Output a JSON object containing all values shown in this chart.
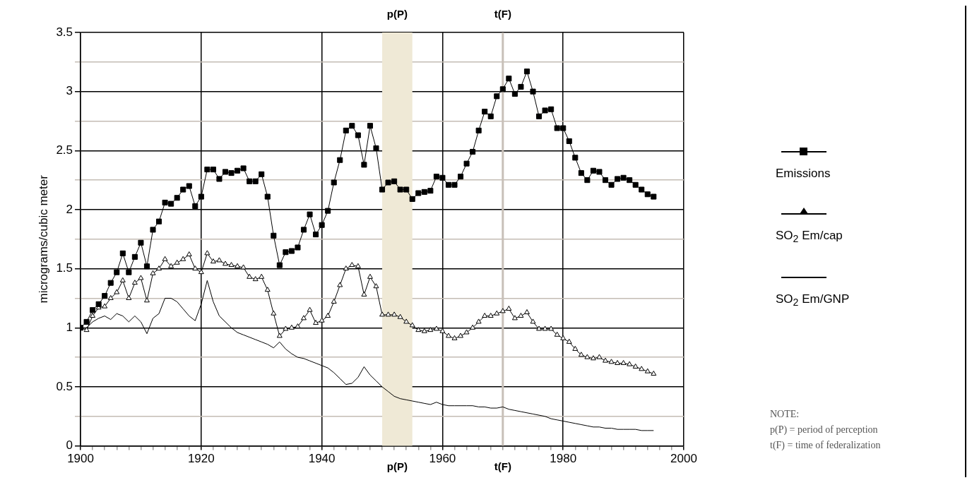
{
  "chart_data": {
    "type": "line",
    "ylabel": "micrograms/cubic meter",
    "x": [
      1900,
      1901,
      1902,
      1903,
      1904,
      1905,
      1906,
      1907,
      1908,
      1909,
      1910,
      1911,
      1912,
      1913,
      1914,
      1915,
      1916,
      1917,
      1918,
      1919,
      1920,
      1921,
      1922,
      1923,
      1924,
      1925,
      1926,
      1927,
      1928,
      1929,
      1930,
      1931,
      1932,
      1933,
      1934,
      1935,
      1936,
      1937,
      1938,
      1939,
      1940,
      1941,
      1942,
      1943,
      1944,
      1945,
      1946,
      1947,
      1948,
      1949,
      1950,
      1951,
      1952,
      1953,
      1954,
      1955,
      1956,
      1957,
      1958,
      1959,
      1960,
      1961,
      1962,
      1963,
      1964,
      1965,
      1966,
      1967,
      1968,
      1969,
      1970,
      1971,
      1972,
      1973,
      1974,
      1975,
      1976,
      1977,
      1978,
      1979,
      1980,
      1981,
      1982,
      1983,
      1984,
      1985,
      1986,
      1987,
      1988,
      1989,
      1990,
      1991,
      1992,
      1993,
      1994,
      1995
    ],
    "series": [
      {
        "name": "Emissions",
        "color": "#000000",
        "marker": "square",
        "values": [
          1.0,
          1.05,
          1.15,
          1.2,
          1.27,
          1.38,
          1.47,
          1.63,
          1.47,
          1.6,
          1.72,
          1.52,
          1.83,
          1.9,
          2.06,
          2.05,
          2.1,
          2.17,
          2.2,
          2.03,
          2.11,
          2.34,
          2.34,
          2.26,
          2.32,
          2.31,
          2.33,
          2.35,
          2.24,
          2.24,
          2.3,
          2.11,
          1.78,
          1.53,
          1.64,
          1.65,
          1.68,
          1.83,
          1.96,
          1.79,
          1.87,
          1.99,
          2.23,
          2.42,
          2.67,
          2.71,
          2.63,
          2.38,
          2.71,
          2.52,
          2.17,
          2.23,
          2.24,
          2.17,
          2.17,
          2.09,
          2.14,
          2.15,
          2.16,
          2.28,
          2.27,
          2.21,
          2.21,
          2.28,
          2.39,
          2.49,
          2.67,
          2.83,
          2.79,
          2.96,
          3.02,
          3.11,
          2.98,
          3.04,
          3.17,
          3.0,
          2.79,
          2.84,
          2.85,
          2.69,
          2.69,
          2.58,
          2.44,
          2.31,
          2.25,
          2.33,
          2.32,
          2.25,
          2.21,
          2.26,
          2.27,
          2.25,
          2.21,
          2.17,
          2.13,
          2.11
        ]
      },
      {
        "name": "SO$_{2}$ Em/cap",
        "color": "#000000",
        "marker": "triangle",
        "values": [
          1.0,
          0.98,
          1.1,
          1.17,
          1.18,
          1.25,
          1.3,
          1.4,
          1.25,
          1.38,
          1.42,
          1.23,
          1.46,
          1.5,
          1.58,
          1.52,
          1.55,
          1.58,
          1.62,
          1.5,
          1.47,
          1.63,
          1.56,
          1.57,
          1.54,
          1.53,
          1.52,
          1.51,
          1.43,
          1.41,
          1.43,
          1.32,
          1.12,
          0.93,
          0.99,
          1.0,
          1.01,
          1.08,
          1.15,
          1.04,
          1.06,
          1.1,
          1.22,
          1.36,
          1.5,
          1.53,
          1.52,
          1.28,
          1.43,
          1.35,
          1.11,
          1.11,
          1.11,
          1.09,
          1.05,
          1.02,
          0.98,
          0.97,
          0.98,
          0.99,
          0.97,
          0.93,
          0.91,
          0.93,
          0.96,
          1.0,
          1.05,
          1.1,
          1.1,
          1.12,
          1.14,
          1.16,
          1.08,
          1.1,
          1.13,
          1.05,
          0.99,
          0.99,
          0.99,
          0.94,
          0.91,
          0.88,
          0.82,
          0.77,
          0.75,
          0.74,
          0.75,
          0.72,
          0.71,
          0.7,
          0.7,
          0.69,
          0.67,
          0.65,
          0.63,
          0.61
        ]
      },
      {
        "name": "SO$_{2}$ Em/GNP",
        "color": "#000000",
        "marker": "none",
        "values": [
          1.0,
          1.0,
          1.05,
          1.08,
          1.1,
          1.07,
          1.12,
          1.1,
          1.05,
          1.1,
          1.05,
          0.95,
          1.08,
          1.12,
          1.25,
          1.25,
          1.22,
          1.16,
          1.1,
          1.06,
          1.2,
          1.4,
          1.22,
          1.1,
          1.05,
          1.0,
          0.96,
          0.94,
          0.92,
          0.9,
          0.88,
          0.86,
          0.83,
          0.88,
          0.82,
          0.78,
          0.75,
          0.74,
          0.72,
          0.7,
          0.68,
          0.66,
          0.62,
          0.57,
          0.52,
          0.53,
          0.58,
          0.67,
          0.6,
          0.55,
          0.5,
          0.46,
          0.42,
          0.4,
          0.39,
          0.38,
          0.37,
          0.36,
          0.35,
          0.37,
          0.35,
          0.34,
          0.34,
          0.34,
          0.34,
          0.34,
          0.33,
          0.33,
          0.32,
          0.32,
          0.33,
          0.31,
          0.3,
          0.29,
          0.28,
          0.27,
          0.26,
          0.25,
          0.23,
          0.22,
          0.21,
          0.2,
          0.19,
          0.18,
          0.17,
          0.16,
          0.16,
          0.15,
          0.15,
          0.14,
          0.14,
          0.14,
          0.14,
          0.13,
          0.13,
          0.13
        ]
      }
    ],
    "xlim": [
      1900,
      2000
    ],
    "xticks": [
      1900,
      {
        "value": 1902,
        "label": null
      },
      {
        "value": 1904,
        "label": null
      },
      {
        "value": 1906,
        "label": null
      },
      {
        "value": 1908,
        "label": null
      },
      {
        "value": 1910,
        "label": null
      },
      {
        "value": 1912,
        "label": null
      },
      {
        "value": 1914,
        "label": null
      },
      {
        "value": 1916,
        "label": null
      },
      {
        "value": 1918,
        "label": null
      },
      1920,
      {
        "value": 1922,
        "label": null
      },
      {
        "value": 1924,
        "label": null
      },
      {
        "value": 1926,
        "label": null
      },
      {
        "value": 1928,
        "label": null
      },
      {
        "value": 1930,
        "label": null
      },
      {
        "value": 1932,
        "label": null
      },
      {
        "value": 1934,
        "label": null
      },
      {
        "value": 1936,
        "label": null
      },
      {
        "value": 1938,
        "label": null
      },
      1940,
      {
        "value": 1942,
        "label": null
      },
      {
        "value": 1944,
        "label": null
      },
      {
        "value": 1946,
        "label": null
      },
      {
        "value": 1948,
        "label": null
      },
      {
        "value": 1950,
        "label": null
      },
      {
        "value": 1952,
        "label": null
      },
      {
        "value": 1954,
        "label": null
      },
      {
        "value": 1956,
        "label": null
      },
      {
        "value": 1958,
        "label": null
      },
      1960,
      {
        "value": 1962,
        "label": null
      },
      {
        "value": 1964,
        "label": null
      },
      {
        "value": 1966,
        "label": null
      },
      {
        "value": 1968,
        "label": null
      },
      {
        "value": 1970,
        "label": null
      },
      {
        "value": 1972,
        "label": null
      },
      {
        "value": 1974,
        "label": null
      },
      {
        "value": 1976,
        "label": null
      },
      {
        "value": 1978,
        "label": null
      },
      1980,
      {
        "value": 1982,
        "label": null
      },
      {
        "value": 1984,
        "label": null
      },
      {
        "value": 1986,
        "label": null
      },
      {
        "value": 1988,
        "label": null
      },
      {
        "value": 1990,
        "label": null
      },
      {
        "value": 1992,
        "label": null
      },
      {
        "value": 1994,
        "label": null
      },
      {
        "value": 1996,
        "label": null
      },
      {
        "value": 1998,
        "label": null
      },
      2000
    ],
    "ylim": [
      0,
      3.5
    ],
    "yticks": [
      0,
      {
        "value": 0.25,
        "label": null
      },
      0.5,
      {
        "value": 0.75,
        "label": null
      },
      1,
      {
        "value": 1.25,
        "label": null
      },
      1.5,
      {
        "value": 1.75,
        "label": null
      },
      2,
      {
        "value": 2.25,
        "label": null
      },
      2.5,
      {
        "value": 2.75,
        "label": null
      },
      3,
      {
        "value": 3.25,
        "label": null
      },
      3.5
    ],
    "grid": true,
    "legend": "right",
    "bands": [
      {
        "axis": "x",
        "from": 1950,
        "to": 1955,
        "label": "p(P)",
        "color": "#efe9d6"
      }
    ],
    "ref_lines": [
      {
        "axis": "x",
        "value": 1970,
        "label": "t(F)",
        "color": "#c8c0b8"
      }
    ],
    "annotations": [
      "NOTE:",
      "p(P) = period of perception",
      "t(F) = time of federalization"
    ]
  }
}
